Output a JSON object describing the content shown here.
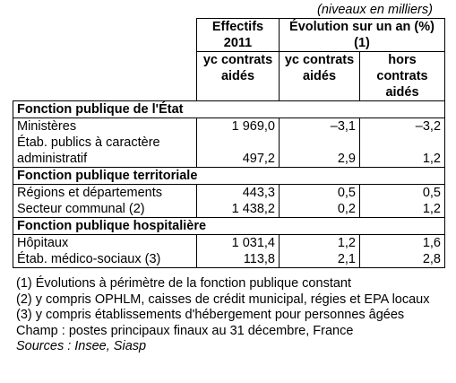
{
  "unit_note": "(niveaux en milliers)",
  "headers": {
    "effectifs": "Effectifs 2011",
    "evolution": "Évolution sur un an (%) (1)",
    "sub_yc_1": "yc contrats aidés",
    "sub_yc_2": "yc contrats aidés",
    "sub_hors": "hors contrats aidés"
  },
  "sections": [
    {
      "title": "Fonction publique de l'État",
      "rows": [
        {
          "label": "Ministères",
          "effectifs": "1 969,0",
          "evol_yc": "–3,1",
          "evol_hors": "–3,2"
        },
        {
          "label": "Étab. publics à caractère administratif",
          "effectifs": "497,2",
          "evol_yc": "2,9",
          "evol_hors": "1,2"
        }
      ]
    },
    {
      "title": "Fonction publique territoriale",
      "rows": [
        {
          "label": "Régions et départements",
          "effectifs": "443,3",
          "evol_yc": "0,5",
          "evol_hors": "0,5"
        },
        {
          "label": "Secteur communal (2)",
          "effectifs": "1 438,2",
          "evol_yc": "0,2",
          "evol_hors": "1,2"
        }
      ]
    },
    {
      "title": "Fonction publique hospitalière",
      "rows": [
        {
          "label": "Hôpitaux",
          "effectifs": "1 031,4",
          "evol_yc": "1,2",
          "evol_hors": "1,6"
        },
        {
          "label": "Étab. médico-sociaux (3)",
          "effectifs": "113,8",
          "evol_yc": "2,1",
          "evol_hors": "2,8"
        }
      ]
    }
  ],
  "notes": [
    "(1) Évolutions à périmètre de la fonction publique constant",
    "(2) y compris OPHLM, caisses de crédit municipal, régies et EPA locaux",
    "(3) y compris établissements d'hébergement pour personnes âgées",
    "Champ : postes principaux finaux au 31 décembre, France"
  ],
  "sources": "Sources : Insee, Siasp"
}
